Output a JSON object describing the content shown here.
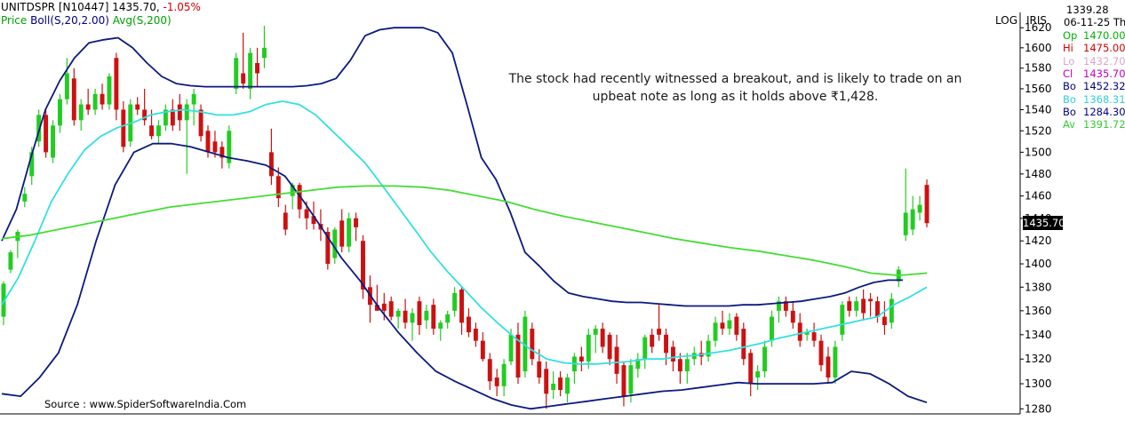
{
  "header": {
    "symbol": "UNITDSPR [N10447]",
    "last_price": "1435.70,",
    "change": "-1.05%",
    "price_label": "Price",
    "boll_label": "Boll(S,20,2.00)",
    "avg_label": "Avg(S,200)"
  },
  "corner": {
    "log": "LOG",
    "iris": "IRIS"
  },
  "annotation": {
    "line1": "The stock had recently witnessed a breakout, and is likely to trade on an",
    "line2": "upbeat note as long as it holds above ₹1,428."
  },
  "source": "Source : www.SpiderSoftwareIndia.Com",
  "last_value_label": "1435.70",
  "info_panel": {
    "value": "1339.28",
    "date": "06-11-25 Th",
    "rows": [
      {
        "label": "Op",
        "value": "1470.00",
        "color": "#00b400"
      },
      {
        "label": "Hi",
        "value": "1475.00",
        "color": "#d00000"
      },
      {
        "label": "Lo",
        "value": "1432.70",
        "color": "#d8a8c8"
      },
      {
        "label": "Cl",
        "value": "1435.70",
        "color": "#c000c0"
      },
      {
        "label": "Bo",
        "value": "1452.32",
        "color": "#000080"
      },
      {
        "label": "Bo",
        "value": "1368.31",
        "color": "#30d0d0"
      },
      {
        "label": "Bo",
        "value": "1284.30",
        "color": "#000080"
      },
      {
        "label": "Av",
        "value": "1391.72",
        "color": "#33cc33"
      }
    ]
  },
  "colors": {
    "up_candle": "#22cc22",
    "down_candle": "#cc1111",
    "bollinger_band": "#0b1a80",
    "bollinger_mid": "#33e0e0",
    "moving_avg": "#44dd33",
    "change_text": "#d00000",
    "boll_text": "#000080",
    "avg_text": "#00a000"
  },
  "chart_data": {
    "type": "candlestick",
    "scale": "log",
    "ylim": [
      1276,
      1630
    ],
    "y_ticks": [
      1620,
      1600,
      1580,
      1560,
      1540,
      1520,
      1500,
      1480,
      1460,
      1440,
      1420,
      1400,
      1380,
      1360,
      1340,
      1320,
      1300,
      1280
    ],
    "last_close": 1435.7,
    "candles": [
      {
        "o": 1355,
        "h": 1385,
        "l": 1348,
        "c": 1383
      },
      {
        "o": 1395,
        "h": 1412,
        "l": 1392,
        "c": 1410
      },
      {
        "o": 1420,
        "h": 1430,
        "l": 1405,
        "c": 1428
      },
      {
        "o": 1455,
        "h": 1468,
        "l": 1450,
        "c": 1462
      },
      {
        "o": 1478,
        "h": 1505,
        "l": 1470,
        "c": 1500
      },
      {
        "o": 1510,
        "h": 1540,
        "l": 1505,
        "c": 1535
      },
      {
        "o": 1535,
        "h": 1540,
        "l": 1495,
        "c": 1500
      },
      {
        "o": 1495,
        "h": 1530,
        "l": 1490,
        "c": 1525
      },
      {
        "o": 1525,
        "h": 1555,
        "l": 1518,
        "c": 1550
      },
      {
        "o": 1550,
        "h": 1590,
        "l": 1545,
        "c": 1575
      },
      {
        "o": 1570,
        "h": 1580,
        "l": 1525,
        "c": 1530
      },
      {
        "o": 1530,
        "h": 1550,
        "l": 1520,
        "c": 1545
      },
      {
        "o": 1545,
        "h": 1560,
        "l": 1535,
        "c": 1540
      },
      {
        "o": 1540,
        "h": 1560,
        "l": 1535,
        "c": 1555
      },
      {
        "o": 1555,
        "h": 1565,
        "l": 1540,
        "c": 1545
      },
      {
        "o": 1545,
        "h": 1575,
        "l": 1540,
        "c": 1572
      },
      {
        "o": 1590,
        "h": 1595,
        "l": 1530,
        "c": 1540
      },
      {
        "o": 1540,
        "h": 1548,
        "l": 1500,
        "c": 1505
      },
      {
        "o": 1510,
        "h": 1550,
        "l": 1505,
        "c": 1545
      },
      {
        "o": 1545,
        "h": 1552,
        "l": 1535,
        "c": 1540
      },
      {
        "o": 1540,
        "h": 1560,
        "l": 1525,
        "c": 1530
      },
      {
        "o": 1525,
        "h": 1540,
        "l": 1512,
        "c": 1515
      },
      {
        "o": 1515,
        "h": 1530,
        "l": 1508,
        "c": 1525
      },
      {
        "o": 1525,
        "h": 1545,
        "l": 1520,
        "c": 1540
      },
      {
        "o": 1540,
        "h": 1550,
        "l": 1520,
        "c": 1525
      },
      {
        "o": 1545,
        "h": 1555,
        "l": 1520,
        "c": 1530
      },
      {
        "o": 1530,
        "h": 1550,
        "l": 1480,
        "c": 1545
      },
      {
        "o": 1545,
        "h": 1560,
        "l": 1525,
        "c": 1555
      },
      {
        "o": 1540,
        "h": 1545,
        "l": 1510,
        "c": 1515
      },
      {
        "o": 1520,
        "h": 1525,
        "l": 1495,
        "c": 1500
      },
      {
        "o": 1510,
        "h": 1520,
        "l": 1495,
        "c": 1500
      },
      {
        "o": 1505,
        "h": 1510,
        "l": 1485,
        "c": 1495
      },
      {
        "o": 1490,
        "h": 1525,
        "l": 1485,
        "c": 1520
      },
      {
        "o": 1560,
        "h": 1595,
        "l": 1555,
        "c": 1590
      },
      {
        "o": 1575,
        "h": 1615,
        "l": 1560,
        "c": 1565
      },
      {
        "o": 1560,
        "h": 1600,
        "l": 1550,
        "c": 1595
      },
      {
        "o": 1585,
        "h": 1600,
        "l": 1562,
        "c": 1575
      },
      {
        "o": 1590,
        "h": 1622,
        "l": 1580,
        "c": 1600
      },
      {
        "o": 1500,
        "h": 1522,
        "l": 1470,
        "c": 1478
      },
      {
        "o": 1478,
        "h": 1486,
        "l": 1450,
        "c": 1458
      },
      {
        "o": 1445,
        "h": 1452,
        "l": 1425,
        "c": 1430
      },
      {
        "o": 1460,
        "h": 1472,
        "l": 1448,
        "c": 1470
      },
      {
        "o": 1470,
        "h": 1472,
        "l": 1440,
        "c": 1448
      },
      {
        "o": 1448,
        "h": 1455,
        "l": 1430,
        "c": 1440
      },
      {
        "o": 1442,
        "h": 1455,
        "l": 1430,
        "c": 1435
      },
      {
        "o": 1435,
        "h": 1448,
        "l": 1420,
        "c": 1430
      },
      {
        "o": 1428,
        "h": 1432,
        "l": 1395,
        "c": 1400
      },
      {
        "o": 1405,
        "h": 1432,
        "l": 1400,
        "c": 1430
      },
      {
        "o": 1438,
        "h": 1448,
        "l": 1410,
        "c": 1415
      },
      {
        "o": 1415,
        "h": 1445,
        "l": 1410,
        "c": 1440
      },
      {
        "o": 1440,
        "h": 1445,
        "l": 1420,
        "c": 1432
      },
      {
        "o": 1420,
        "h": 1425,
        "l": 1370,
        "c": 1378
      },
      {
        "o": 1380,
        "h": 1390,
        "l": 1350,
        "c": 1365
      },
      {
        "o": 1365,
        "h": 1382,
        "l": 1360,
        "c": 1360
      },
      {
        "o": 1366,
        "h": 1375,
        "l": 1352,
        "c": 1360
      },
      {
        "o": 1368,
        "h": 1372,
        "l": 1352,
        "c": 1355
      },
      {
        "o": 1355,
        "h": 1362,
        "l": 1345,
        "c": 1360
      },
      {
        "o": 1360,
        "h": 1370,
        "l": 1345,
        "c": 1350
      },
      {
        "o": 1350,
        "h": 1362,
        "l": 1335,
        "c": 1358
      },
      {
        "o": 1368,
        "h": 1372,
        "l": 1340,
        "c": 1348
      },
      {
        "o": 1352,
        "h": 1365,
        "l": 1345,
        "c": 1360
      },
      {
        "o": 1365,
        "h": 1370,
        "l": 1340,
        "c": 1345
      },
      {
        "o": 1345,
        "h": 1352,
        "l": 1335,
        "c": 1350
      },
      {
        "o": 1350,
        "h": 1360,
        "l": 1345,
        "c": 1357
      },
      {
        "o": 1360,
        "h": 1380,
        "l": 1355,
        "c": 1375
      },
      {
        "o": 1378,
        "h": 1380,
        "l": 1340,
        "c": 1350
      },
      {
        "o": 1355,
        "h": 1362,
        "l": 1338,
        "c": 1342
      },
      {
        "o": 1345,
        "h": 1350,
        "l": 1330,
        "c": 1335
      },
      {
        "o": 1335,
        "h": 1342,
        "l": 1318,
        "c": 1320
      },
      {
        "o": 1320,
        "h": 1325,
        "l": 1295,
        "c": 1302
      },
      {
        "o": 1305,
        "h": 1312,
        "l": 1290,
        "c": 1298
      },
      {
        "o": 1298,
        "h": 1320,
        "l": 1290,
        "c": 1316
      },
      {
        "o": 1318,
        "h": 1345,
        "l": 1315,
        "c": 1340
      },
      {
        "o": 1340,
        "h": 1350,
        "l": 1300,
        "c": 1305
      },
      {
        "o": 1310,
        "h": 1360,
        "l": 1305,
        "c": 1355
      },
      {
        "o": 1345,
        "h": 1350,
        "l": 1315,
        "c": 1320
      },
      {
        "o": 1318,
        "h": 1328,
        "l": 1300,
        "c": 1305
      },
      {
        "o": 1312,
        "h": 1318,
        "l": 1280,
        "c": 1292
      },
      {
        "o": 1295,
        "h": 1310,
        "l": 1288,
        "c": 1300
      },
      {
        "o": 1305,
        "h": 1310,
        "l": 1290,
        "c": 1295
      },
      {
        "o": 1292,
        "h": 1308,
        "l": 1285,
        "c": 1305
      },
      {
        "o": 1310,
        "h": 1325,
        "l": 1300,
        "c": 1322
      },
      {
        "o": 1322,
        "h": 1330,
        "l": 1310,
        "c": 1318
      },
      {
        "o": 1318,
        "h": 1345,
        "l": 1312,
        "c": 1340
      },
      {
        "o": 1340,
        "h": 1348,
        "l": 1325,
        "c": 1345
      },
      {
        "o": 1345,
        "h": 1350,
        "l": 1325,
        "c": 1330
      },
      {
        "o": 1340,
        "h": 1342,
        "l": 1315,
        "c": 1320
      },
      {
        "o": 1330,
        "h": 1340,
        "l": 1300,
        "c": 1308
      },
      {
        "o": 1315,
        "h": 1318,
        "l": 1282,
        "c": 1290
      },
      {
        "o": 1292,
        "h": 1320,
        "l": 1285,
        "c": 1315
      },
      {
        "o": 1312,
        "h": 1325,
        "l": 1305,
        "c": 1320
      },
      {
        "o": 1320,
        "h": 1340,
        "l": 1312,
        "c": 1338
      },
      {
        "o": 1340,
        "h": 1345,
        "l": 1325,
        "c": 1330
      },
      {
        "o": 1345,
        "h": 1365,
        "l": 1335,
        "c": 1340
      },
      {
        "o": 1340,
        "h": 1345,
        "l": 1315,
        "c": 1325
      },
      {
        "o": 1330,
        "h": 1335,
        "l": 1310,
        "c": 1318
      },
      {
        "o": 1320,
        "h": 1325,
        "l": 1300,
        "c": 1310
      },
      {
        "o": 1310,
        "h": 1325,
        "l": 1300,
        "c": 1320
      },
      {
        "o": 1320,
        "h": 1330,
        "l": 1315,
        "c": 1325
      },
      {
        "o": 1325,
        "h": 1335,
        "l": 1315,
        "c": 1322
      },
      {
        "o": 1322,
        "h": 1340,
        "l": 1318,
        "c": 1335
      },
      {
        "o": 1335,
        "h": 1355,
        "l": 1330,
        "c": 1350
      },
      {
        "o": 1350,
        "h": 1360,
        "l": 1340,
        "c": 1345
      },
      {
        "o": 1345,
        "h": 1358,
        "l": 1340,
        "c": 1352
      },
      {
        "o": 1355,
        "h": 1358,
        "l": 1335,
        "c": 1340
      },
      {
        "o": 1345,
        "h": 1350,
        "l": 1315,
        "c": 1320
      },
      {
        "o": 1325,
        "h": 1328,
        "l": 1290,
        "c": 1300
      },
      {
        "o": 1305,
        "h": 1315,
        "l": 1295,
        "c": 1310
      },
      {
        "o": 1310,
        "h": 1335,
        "l": 1305,
        "c": 1330
      },
      {
        "o": 1335,
        "h": 1360,
        "l": 1330,
        "c": 1355
      },
      {
        "o": 1360,
        "h": 1372,
        "l": 1350,
        "c": 1368
      },
      {
        "o": 1368,
        "h": 1372,
        "l": 1355,
        "c": 1360
      },
      {
        "o": 1360,
        "h": 1368,
        "l": 1345,
        "c": 1350
      },
      {
        "o": 1350,
        "h": 1358,
        "l": 1330,
        "c": 1335
      },
      {
        "o": 1340,
        "h": 1345,
        "l": 1335,
        "c": 1342
      },
      {
        "o": 1342,
        "h": 1350,
        "l": 1330,
        "c": 1335
      },
      {
        "o": 1335,
        "h": 1340,
        "l": 1310,
        "c": 1315
      },
      {
        "o": 1322,
        "h": 1330,
        "l": 1300,
        "c": 1305
      },
      {
        "o": 1305,
        "h": 1335,
        "l": 1300,
        "c": 1330
      },
      {
        "o": 1340,
        "h": 1368,
        "l": 1335,
        "c": 1365
      },
      {
        "o": 1368,
        "h": 1372,
        "l": 1355,
        "c": 1360
      },
      {
        "o": 1360,
        "h": 1372,
        "l": 1355,
        "c": 1368
      },
      {
        "o": 1370,
        "h": 1378,
        "l": 1352,
        "c": 1358
      },
      {
        "o": 1370,
        "h": 1375,
        "l": 1355,
        "c": 1368
      },
      {
        "o": 1368,
        "h": 1372,
        "l": 1350,
        "c": 1355
      },
      {
        "o": 1355,
        "h": 1368,
        "l": 1340,
        "c": 1348
      },
      {
        "o": 1350,
        "h": 1375,
        "l": 1345,
        "c": 1370
      },
      {
        "o": 1385,
        "h": 1398,
        "l": 1380,
        "c": 1395
      },
      {
        "o": 1425,
        "h": 1485,
        "l": 1420,
        "c": 1445
      },
      {
        "o": 1430,
        "h": 1460,
        "l": 1425,
        "c": 1448
      },
      {
        "o": 1445,
        "h": 1460,
        "l": 1438,
        "c": 1452
      },
      {
        "o": 1470,
        "h": 1475,
        "l": 1432,
        "c": 1435.7
      }
    ],
    "series": [
      {
        "name": "Boll(S,20,2.00)",
        "role": "upper",
        "values": [
          1420,
          1448,
          1495,
          1540,
          1568,
          1590,
          1605,
          1608,
          1610,
          1600,
          1585,
          1572,
          1565,
          1563,
          1562,
          1562,
          1562,
          1562,
          1562,
          1562,
          1562,
          1563,
          1565,
          1570,
          1588,
          1612,
          1618,
          1620,
          1620,
          1620,
          1615,
          1595,
          1545,
          1495,
          1475,
          1445,
          1410,
          1398,
          1385,
          1375,
          1372,
          1370,
          1368,
          1367,
          1367,
          1366,
          1365,
          1364,
          1364,
          1364,
          1364,
          1365,
          1365,
          1366,
          1367,
          1368,
          1370,
          1372,
          1375,
          1380,
          1384,
          1386,
          1386
        ]
      },
      {
        "name": "Boll(S,20,2.00)",
        "role": "middle",
        "values": [
          1365,
          1388,
          1420,
          1455,
          1480,
          1502,
          1515,
          1523,
          1528,
          1535,
          1538,
          1540,
          1538,
          1535,
          1535,
          1538,
          1545,
          1548,
          1545,
          1535,
          1520,
          1505,
          1490,
          1470,
          1450,
          1430,
          1410,
          1393,
          1378,
          1363,
          1350,
          1338,
          1328,
          1320,
          1317,
          1316,
          1316,
          1317,
          1318,
          1320,
          1320,
          1322,
          1323,
          1325,
          1327,
          1330,
          1333,
          1337,
          1340,
          1343,
          1346,
          1349,
          1352,
          1355,
          1365,
          1372,
          1380
        ]
      },
      {
        "name": "Boll(S,20,2.00)",
        "role": "lower",
        "values": [
          1292,
          1290,
          1305,
          1325,
          1365,
          1420,
          1470,
          1500,
          1508,
          1508,
          1505,
          1500,
          1495,
          1492,
          1488,
          1478,
          1455,
          1430,
          1405,
          1385,
          1362,
          1342,
          1325,
          1310,
          1302,
          1295,
          1288,
          1283,
          1280,
          1282,
          1284,
          1286,
          1288,
          1290,
          1292,
          1294,
          1295,
          1297,
          1299,
          1301,
          1300,
          1300,
          1300,
          1300,
          1301,
          1310,
          1308,
          1300,
          1290,
          1285
        ]
      },
      {
        "name": "Avg(S,200)",
        "role": "average",
        "values": [
          1422,
          1425,
          1430,
          1435,
          1440,
          1445,
          1450,
          1453,
          1456,
          1459,
          1462,
          1465,
          1468,
          1469,
          1469,
          1468,
          1465,
          1460,
          1455,
          1448,
          1442,
          1437,
          1432,
          1427,
          1422,
          1418,
          1414,
          1411,
          1407,
          1403,
          1398,
          1392,
          1390,
          1392
        ]
      }
    ]
  }
}
